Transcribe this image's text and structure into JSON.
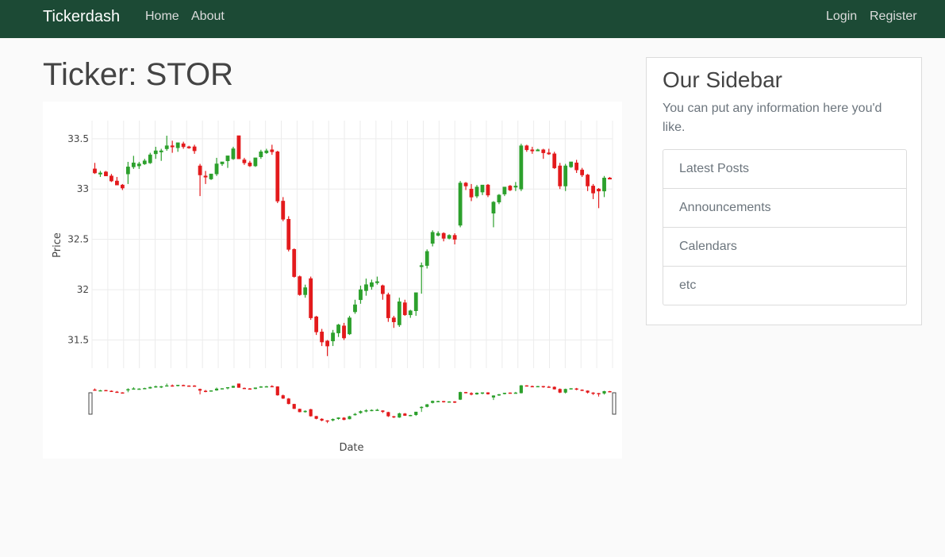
{
  "navbar": {
    "brand": "Tickerdash",
    "links": [
      "Home",
      "About"
    ],
    "login": "Login",
    "register": "Register"
  },
  "page": {
    "title": "Ticker: STOR"
  },
  "sidebar": {
    "title": "Our Sidebar",
    "text": "You can put any information here you'd like.",
    "items": [
      "Latest Posts",
      "Announcements",
      "Calendars",
      "etc"
    ]
  },
  "colors": {
    "navbar": "#1c4a35",
    "up": "#2ca02c",
    "down": "#e31a1c"
  },
  "chart_data": {
    "type": "candlestick",
    "title": "",
    "xlabel": "Date",
    "ylabel": "Price",
    "y_ticks": [
      31.5,
      32,
      32.5,
      33,
      33.5
    ],
    "ylim": [
      31.22,
      33.68
    ],
    "grid": true,
    "legend": "none",
    "rangeslider": true,
    "ohlc": [
      [
        33.2,
        33.26,
        33.15,
        33.16
      ],
      [
        33.15,
        33.18,
        33.12,
        33.16
      ],
      [
        33.17,
        33.18,
        33.13,
        33.13
      ],
      [
        33.13,
        33.15,
        33.07,
        33.08
      ],
      [
        33.08,
        33.12,
        33.04,
        33.04
      ],
      [
        33.04,
        33.05,
        32.99,
        33.01
      ],
      [
        33.15,
        33.27,
        33.05,
        33.22
      ],
      [
        33.22,
        33.33,
        33.2,
        33.26
      ],
      [
        33.23,
        33.27,
        33.2,
        33.25
      ],
      [
        33.25,
        33.3,
        33.24,
        33.28
      ],
      [
        33.26,
        33.36,
        33.25,
        33.34
      ],
      [
        33.35,
        33.42,
        33.3,
        33.38
      ],
      [
        33.37,
        33.4,
        33.28,
        33.38
      ],
      [
        33.4,
        33.53,
        33.38,
        33.43
      ],
      [
        33.43,
        33.48,
        33.36,
        33.42
      ],
      [
        33.41,
        33.46,
        33.37,
        33.46
      ],
      [
        33.45,
        33.47,
        33.4,
        33.42
      ],
      [
        33.42,
        33.43,
        33.4,
        33.41
      ],
      [
        33.42,
        33.44,
        33.35,
        33.38
      ],
      [
        33.23,
        33.25,
        32.93,
        33.14
      ],
      [
        33.13,
        33.18,
        33.05,
        33.12
      ],
      [
        33.1,
        33.15,
        33.09,
        33.15
      ],
      [
        33.15,
        33.31,
        33.13,
        33.25
      ],
      [
        33.25,
        33.27,
        33.23,
        33.27
      ],
      [
        33.28,
        33.33,
        33.21,
        33.33
      ],
      [
        33.3,
        33.42,
        33.29,
        33.4
      ],
      [
        33.53,
        33.53,
        33.3,
        33.3
      ],
      [
        33.29,
        33.31,
        33.24,
        33.26
      ],
      [
        33.26,
        33.28,
        33.22,
        33.23
      ],
      [
        33.23,
        33.31,
        33.22,
        33.31
      ],
      [
        33.32,
        33.39,
        33.3,
        33.37
      ],
      [
        33.36,
        33.4,
        33.35,
        33.38
      ],
      [
        33.39,
        33.44,
        33.34,
        33.37
      ],
      [
        33.37,
        33.38,
        32.86,
        32.88
      ],
      [
        32.88,
        32.92,
        32.68,
        32.7
      ],
      [
        32.7,
        32.73,
        32.38,
        32.4
      ],
      [
        32.4,
        32.41,
        32.12,
        32.13
      ],
      [
        32.13,
        32.14,
        31.94,
        31.95
      ],
      [
        31.95,
        32.05,
        31.92,
        32.02
      ],
      [
        32.11,
        32.13,
        31.7,
        31.72
      ],
      [
        31.73,
        31.74,
        31.55,
        31.58
      ],
      [
        31.58,
        31.61,
        31.44,
        31.48
      ],
      [
        31.49,
        31.5,
        31.34,
        31.44
      ],
      [
        31.49,
        31.6,
        31.44,
        31.57
      ],
      [
        31.57,
        31.66,
        31.53,
        31.65
      ],
      [
        31.64,
        31.67,
        31.5,
        31.52
      ],
      [
        31.56,
        31.74,
        31.55,
        31.72
      ],
      [
        31.78,
        31.9,
        31.76,
        31.85
      ],
      [
        31.9,
        32.04,
        31.86,
        32.0
      ],
      [
        31.99,
        32.11,
        31.94,
        32.05
      ],
      [
        32.03,
        32.1,
        32.0,
        32.07
      ],
      [
        32.08,
        32.13,
        32.05,
        32.08
      ],
      [
        32.04,
        32.05,
        31.9,
        31.96
      ],
      [
        31.95,
        31.97,
        31.68,
        31.72
      ],
      [
        31.72,
        31.74,
        31.62,
        31.68
      ],
      [
        31.65,
        31.92,
        31.63,
        31.88
      ],
      [
        31.87,
        31.9,
        31.74,
        31.75
      ],
      [
        31.75,
        31.8,
        31.72,
        31.79
      ],
      [
        31.79,
        31.97,
        31.74,
        31.97
      ],
      [
        32.24,
        32.27,
        31.96,
        32.24
      ],
      [
        32.24,
        32.4,
        32.21,
        32.38
      ],
      [
        32.46,
        32.59,
        32.43,
        32.57
      ],
      [
        32.54,
        32.58,
        32.53,
        32.56
      ],
      [
        32.56,
        32.57,
        32.48,
        32.51
      ],
      [
        32.51,
        32.55,
        32.5,
        32.54
      ],
      [
        32.54,
        32.56,
        32.45,
        32.5
      ],
      [
        32.64,
        33.08,
        32.62,
        33.06
      ],
      [
        33.06,
        33.07,
        32.99,
        33.03
      ],
      [
        33.0,
        33.05,
        32.88,
        32.92
      ],
      [
        32.93,
        33.04,
        32.91,
        33.02
      ],
      [
        32.97,
        33.04,
        32.94,
        33.04
      ],
      [
        33.04,
        33.05,
        32.92,
        32.94
      ],
      [
        32.76,
        32.88,
        32.62,
        32.87
      ],
      [
        32.87,
        32.95,
        32.85,
        32.94
      ],
      [
        32.95,
        33.02,
        32.93,
        33.02
      ],
      [
        33.03,
        33.04,
        32.98,
        32.99
      ],
      [
        33.02,
        33.07,
        32.98,
        33.03
      ],
      [
        33.0,
        33.45,
        32.98,
        33.43
      ],
      [
        33.43,
        33.44,
        33.37,
        33.39
      ],
      [
        33.39,
        33.42,
        33.35,
        33.38
      ],
      [
        33.39,
        33.4,
        33.38,
        33.39
      ],
      [
        33.39,
        33.4,
        33.3,
        33.36
      ],
      [
        33.36,
        33.4,
        33.34,
        33.35
      ],
      [
        33.35,
        33.37,
        33.2,
        33.21
      ],
      [
        33.23,
        33.26,
        33.0,
        33.03
      ],
      [
        33.03,
        33.25,
        32.98,
        33.23
      ],
      [
        33.22,
        33.27,
        33.21,
        33.27
      ],
      [
        33.26,
        33.29,
        33.16,
        33.19
      ],
      [
        33.19,
        33.21,
        33.12,
        33.14
      ],
      [
        33.14,
        33.15,
        32.98,
        33.03
      ],
      [
        33.03,
        33.05,
        32.9,
        32.96
      ],
      [
        33.0,
        33.01,
        32.81,
        32.98
      ],
      [
        32.98,
        33.13,
        32.92,
        33.11
      ],
      [
        33.11,
        33.12,
        33.1,
        33.1
      ]
    ]
  }
}
